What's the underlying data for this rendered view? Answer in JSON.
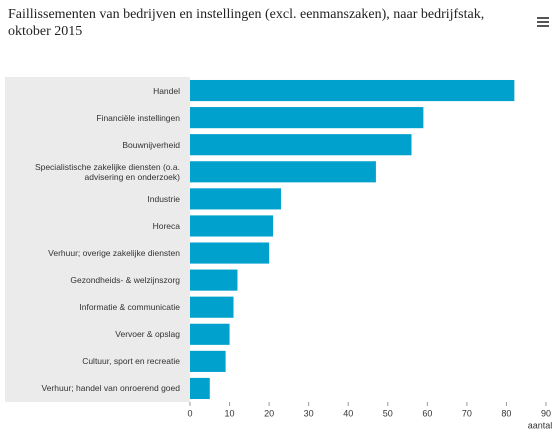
{
  "chart_data": {
    "type": "bar",
    "orientation": "horizontal",
    "title": "Faillissementen van bedrijven en instellingen (excl. eenmanszaken), naar bedrijfstak, oktober 2015",
    "categories": [
      "Handel",
      "Financiële instellingen",
      "Bouwnijverheid",
      "Specialistische zakelijke diensten (o.a. advisering en onderzoek)",
      "Industrie",
      "Horeca",
      "Verhuur; overige zakelijke diensten",
      "Gezondheids- & welzijnszorg",
      "Informatie & communicatie",
      "Vervoer & opslag",
      "Cultuur, sport en recreatie",
      "Verhuur; handel van onroerend goed"
    ],
    "values": [
      82,
      59,
      56,
      47,
      23,
      21,
      20,
      12,
      11,
      10,
      9,
      5
    ],
    "color": "#00a1cd",
    "xlim": [
      0,
      90
    ],
    "xticks": [
      0,
      10,
      20,
      30,
      40,
      50,
      60,
      70,
      80,
      90
    ],
    "x_label": "aantal",
    "grid": false
  }
}
